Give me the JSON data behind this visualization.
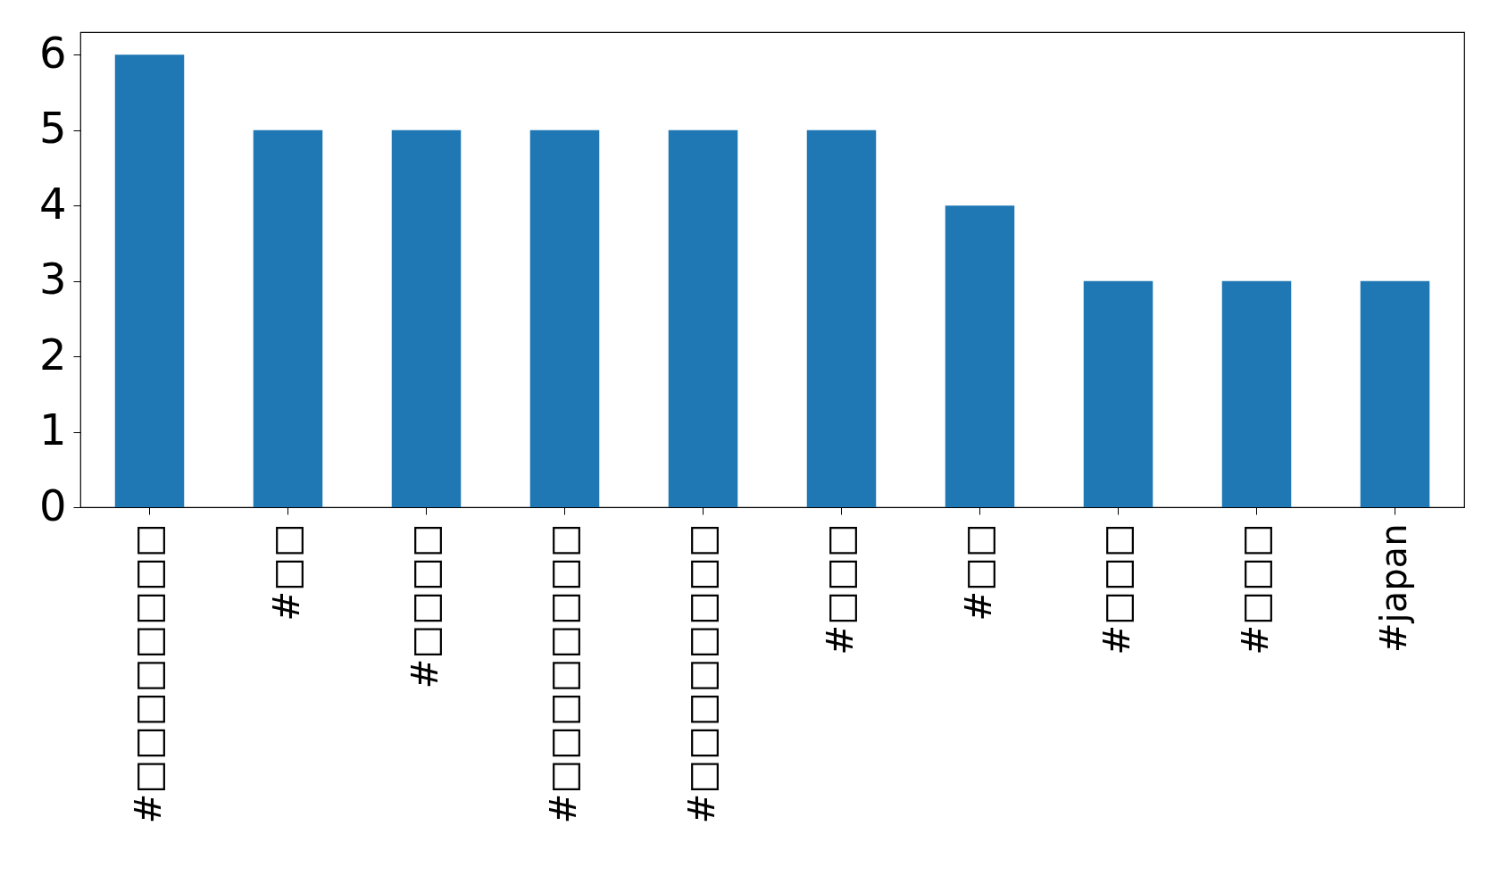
{
  "chart_data": {
    "type": "bar",
    "categories": [
      "#□□□□□□□□",
      "#□□",
      "#□□□□",
      "#□□□□□□□□",
      "#□□□□□□□□",
      "#□□□",
      "#□□",
      "#□□□",
      "#□□□",
      "#japan"
    ],
    "values": [
      6,
      5,
      5,
      5,
      5,
      5,
      4,
      3,
      3,
      3
    ],
    "color": "#1f77b4",
    "ylim": [
      0,
      6.3
    ],
    "yticks": [
      0,
      1,
      2,
      3,
      4,
      5,
      6
    ],
    "grid": false
  }
}
